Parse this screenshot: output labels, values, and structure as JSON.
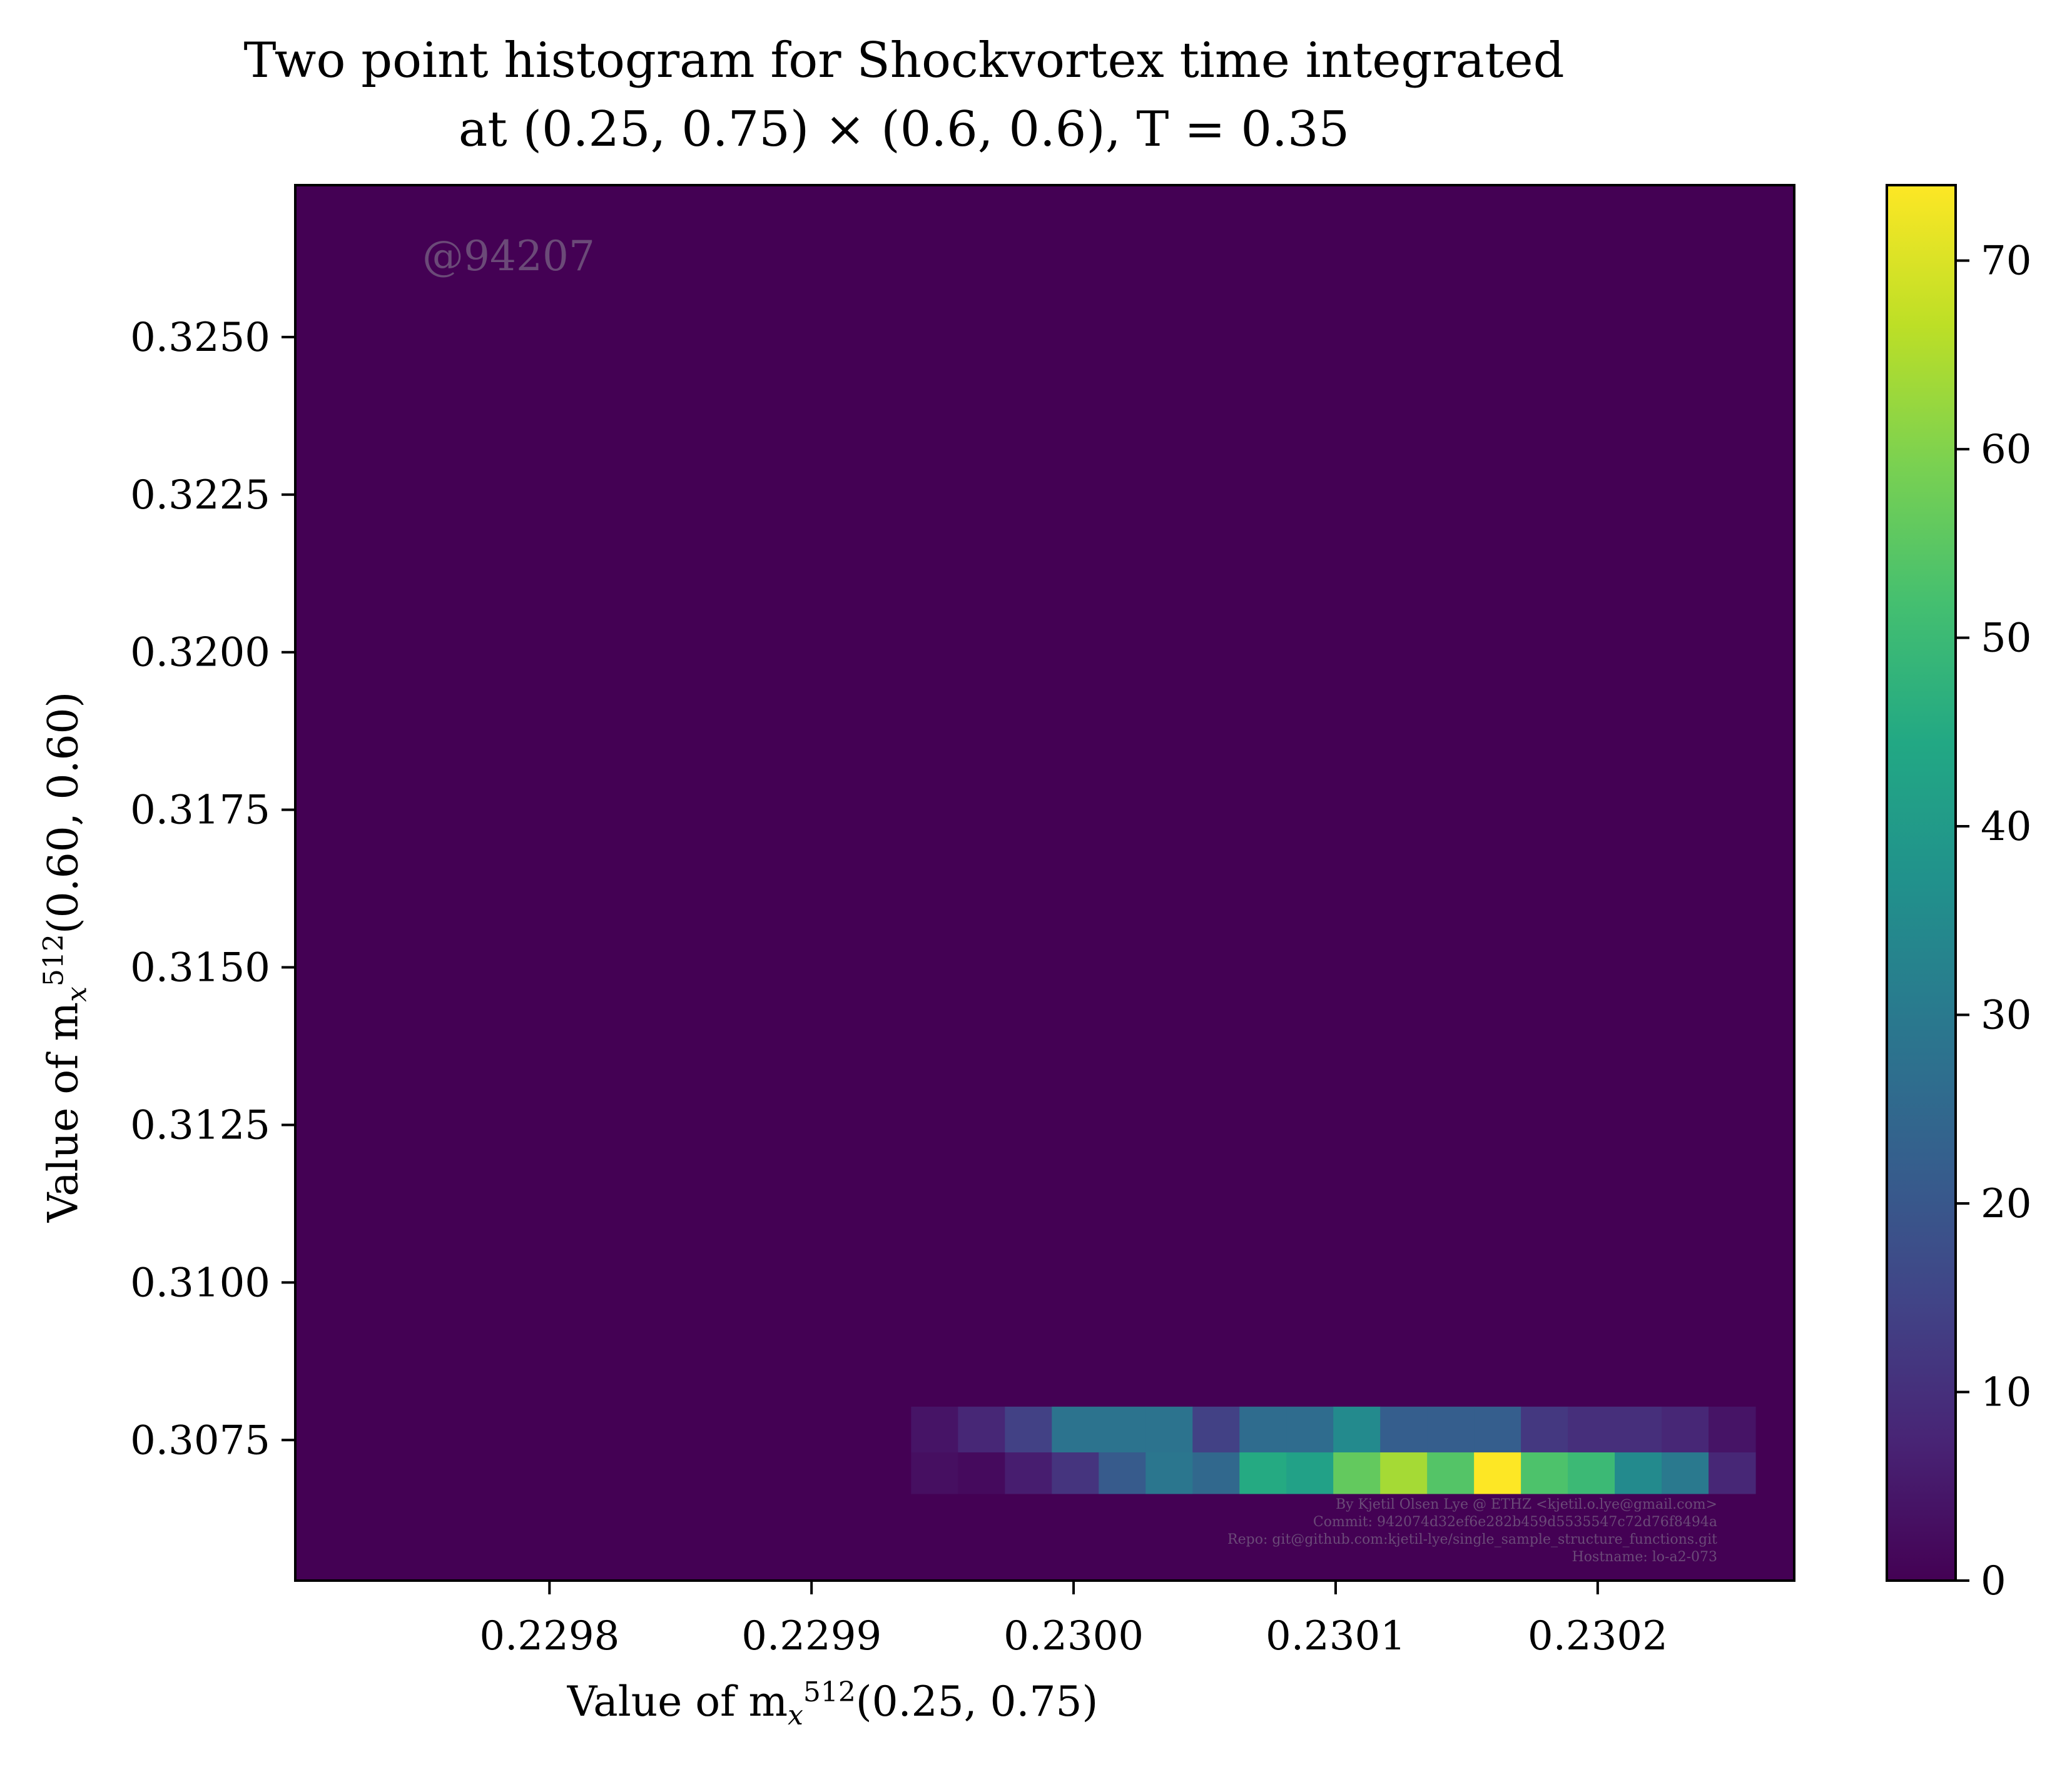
{
  "chart_data": {
    "type": "heatmap",
    "title_line1": "Two point histogram for Shockvortex time integrated",
    "title_line2": "at (0.25, 0.75) × (0.6, 0.6), T = 0.35",
    "xlabel_prefix": "Value of m",
    "xlabel_sup": "512",
    "xlabel_sub": "x",
    "xlabel_suffix": "(0.25, 0.75)",
    "ylabel_prefix": "Value of m",
    "ylabel_sup": "512",
    "ylabel_sub": "x",
    "ylabel_suffix": "(0.60, 0.60)",
    "xlim": [
      0.229703,
      0.230275
    ],
    "ylim": [
      0.30527,
      0.32741
    ],
    "x_ticks": [
      0.2298,
      0.2299,
      0.23,
      0.2301,
      0.2302
    ],
    "x_tick_labels": [
      "0.2298",
      "0.2299",
      "0.2300",
      "0.2301",
      "0.2302"
    ],
    "y_ticks": [
      0.3075,
      0.31,
      0.3125,
      0.315,
      0.3175,
      0.32,
      0.3225,
      0.325
    ],
    "y_tick_labels": [
      "0.3075",
      "0.3100",
      "0.3125",
      "0.3150",
      "0.3175",
      "0.3200",
      "0.3225",
      "0.3250"
    ],
    "bin_x_start": 0.229938,
    "bin_x_width": 1.79e-05,
    "bin_y_edges": [
      0.30665,
      0.30731,
      0.30803
    ],
    "bin_counts": [
      [
        3,
        2,
        6,
        11,
        21,
        29,
        25,
        45,
        42,
        56,
        64,
        54,
        74,
        53,
        50,
        35,
        30,
        8
      ],
      [
        4,
        8,
        14,
        28,
        28,
        28,
        14,
        26,
        26,
        35,
        22,
        22,
        22,
        12,
        10,
        10,
        8,
        4
      ]
    ],
    "colorbar": {
      "min": 0,
      "max": 74,
      "ticks": [
        0,
        10,
        20,
        30,
        40,
        50,
        60,
        70
      ],
      "tick_labels": [
        "0",
        "10",
        "20",
        "30",
        "40",
        "50",
        "60",
        "70"
      ]
    },
    "colormap": "viridis",
    "watermark": "@94207",
    "footer": [
      "By Kjetil Olsen Lye @ ETHZ <kjetil.o.lye@gmail.com>",
      "Commit: 942074d32ef6e282b459d5535547c72d76f8494a",
      "Repo: git@github.com:kjetil-lye/single_sample_structure_functions.git",
      "Hostname: lo-a2-073"
    ]
  }
}
